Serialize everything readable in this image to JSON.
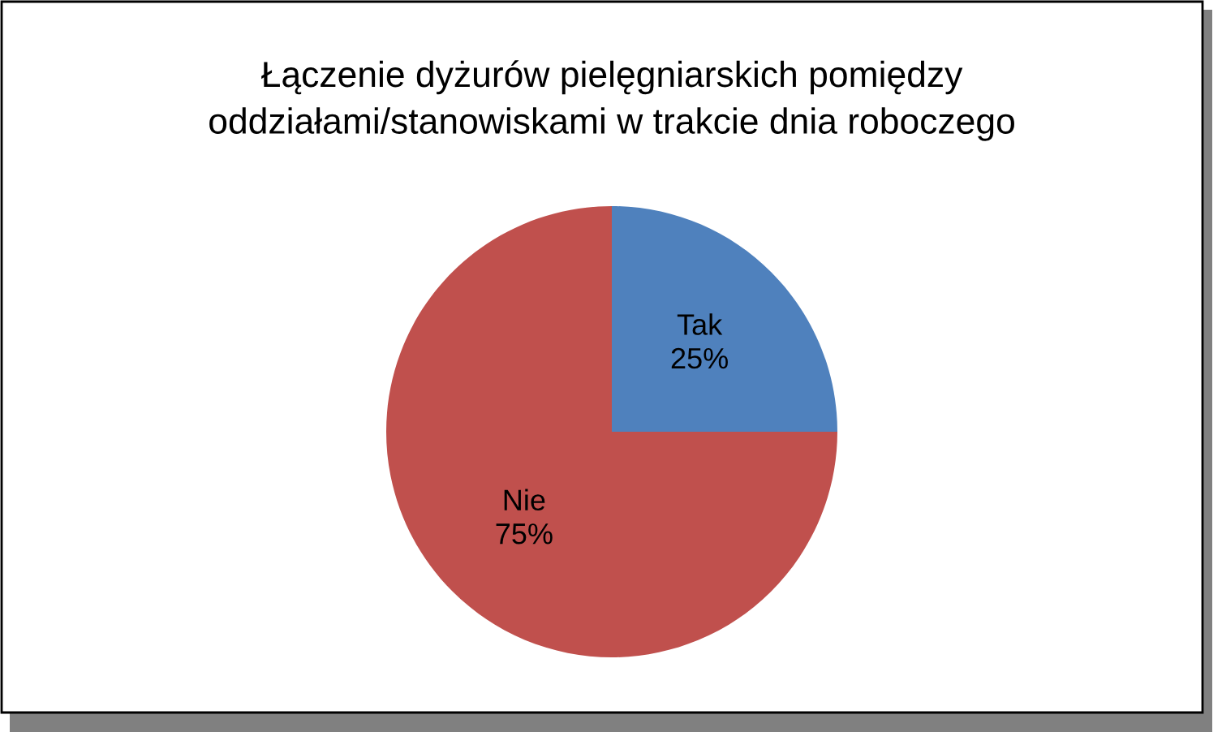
{
  "chart_data": {
    "type": "pie",
    "title": "Łączenie dyżurów pielęgniarskich pomiędzy\noddziałami/stanowiskami w trakcie dnia roboczego",
    "categories": [
      "Tak",
      "Nie"
    ],
    "values": [
      25,
      75
    ],
    "value_labels": [
      "25%",
      "75%"
    ],
    "colors": [
      "#4f81bd",
      "#c0504d"
    ],
    "legend": false
  }
}
